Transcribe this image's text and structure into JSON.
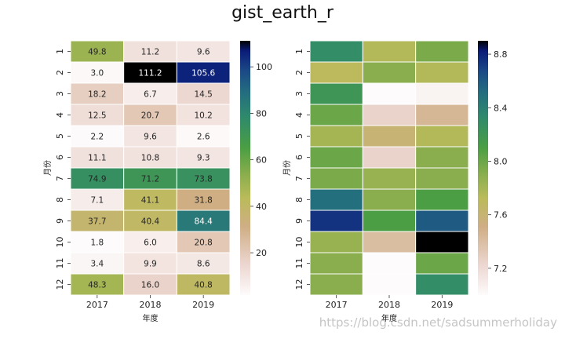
{
  "title": "gist_earth_r",
  "watermark": "https://blog.csdn.net/sadsummerholiday",
  "chart_data": [
    {
      "type": "heatmap",
      "colormap": "gist_earth_r",
      "annotated": true,
      "xlabel": "年度",
      "ylabel": "月份",
      "x": [
        "2017",
        "2018",
        "2019"
      ],
      "y": [
        "1",
        "2",
        "3",
        "4",
        "5",
        "6",
        "7",
        "8",
        "9",
        "10",
        "11",
        "12"
      ],
      "values": [
        [
          49.8,
          11.2,
          9.6
        ],
        [
          3.0,
          111.2,
          105.6
        ],
        [
          18.2,
          6.7,
          14.5
        ],
        [
          12.5,
          20.7,
          10.2
        ],
        [
          2.2,
          9.6,
          2.6
        ],
        [
          11.1,
          10.8,
          9.3
        ],
        [
          74.9,
          71.2,
          73.8
        ],
        [
          7.1,
          41.1,
          31.8
        ],
        [
          37.7,
          40.4,
          84.4
        ],
        [
          1.8,
          6.0,
          20.8
        ],
        [
          3.4,
          9.9,
          8.6
        ],
        [
          48.3,
          16.0,
          40.8
        ]
      ],
      "colorbar_ticks": [
        "20",
        "40",
        "60",
        "80",
        "100"
      ],
      "colorbar_range": [
        1.8,
        111.2
      ]
    },
    {
      "type": "heatmap",
      "colormap": "gist_earth_r",
      "annotated": false,
      "xlabel": "年度",
      "ylabel": "月份",
      "x": [
        "2017",
        "2018",
        "2019"
      ],
      "y": [
        "1",
        "2",
        "3",
        "4",
        "5",
        "6",
        "7",
        "8",
        "9",
        "10",
        "11",
        "12"
      ],
      "values": [
        [
          8.3,
          7.75,
          7.95
        ],
        [
          7.7,
          7.9,
          7.75
        ],
        [
          8.2,
          7.0,
          7.05
        ],
        [
          8.0,
          7.25,
          7.45
        ],
        [
          7.8,
          7.6,
          7.75
        ],
        [
          8.0,
          7.25,
          7.9
        ],
        [
          7.95,
          7.85,
          7.9
        ],
        [
          8.5,
          7.9,
          8.1
        ],
        [
          8.75,
          8.1,
          8.6
        ],
        [
          7.85,
          7.4,
          8.9
        ],
        [
          7.9,
          7.0,
          8.0
        ],
        [
          7.9,
          7.0,
          8.3
        ]
      ],
      "colorbar_ticks": [
        "7.2",
        "7.6",
        "8.0",
        "8.4",
        "8.8"
      ],
      "colorbar_range": [
        7.0,
        8.9
      ]
    }
  ]
}
